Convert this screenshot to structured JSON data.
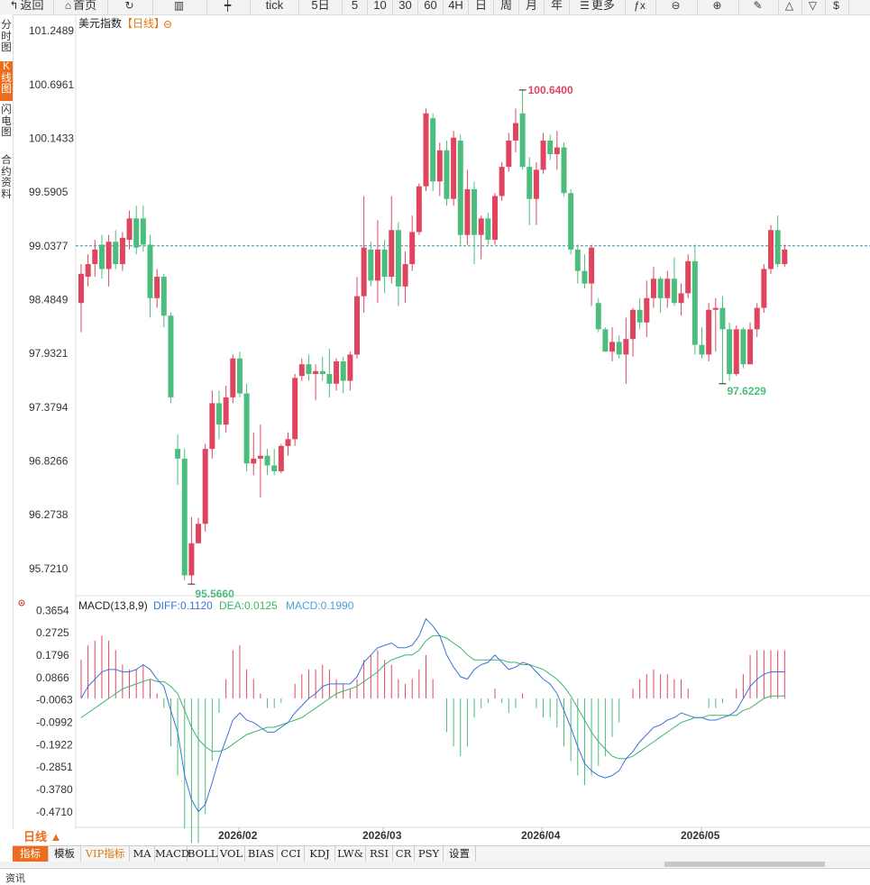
{
  "toolbar": {
    "items": [
      {
        "label": "返回",
        "icon": "back-arrow-icon",
        "glyph": "↰"
      },
      {
        "label": "首页",
        "icon": "home-icon",
        "glyph": "⌂"
      },
      {
        "label": "",
        "icon": "refresh-icon",
        "glyph": "↻"
      },
      {
        "label": "",
        "icon": "bar-chart-icon",
        "glyph": "▥"
      },
      {
        "label": "",
        "icon": "candlestick-icon",
        "glyph": "┿"
      },
      {
        "label": "tick",
        "icon": "",
        "glyph": ""
      },
      {
        "label": "5日",
        "icon": "",
        "glyph": ""
      },
      {
        "label": "5",
        "icon": "",
        "glyph": ""
      },
      {
        "label": "10",
        "icon": "",
        "glyph": ""
      },
      {
        "label": "30",
        "icon": "",
        "glyph": ""
      },
      {
        "label": "60",
        "icon": "",
        "glyph": ""
      },
      {
        "label": "4H",
        "icon": "",
        "glyph": ""
      },
      {
        "label": "日",
        "icon": "",
        "glyph": ""
      },
      {
        "label": "周",
        "icon": "",
        "glyph": ""
      },
      {
        "label": "月",
        "icon": "",
        "glyph": ""
      },
      {
        "label": "年",
        "icon": "",
        "glyph": ""
      },
      {
        "label": "更多",
        "icon": "menu-icon",
        "glyph": "☰"
      },
      {
        "label": "",
        "icon": "function-icon",
        "glyph": "ƒx"
      },
      {
        "label": "",
        "icon": "zoom-out-icon",
        "glyph": "⊖"
      },
      {
        "label": "",
        "icon": "zoom-in-icon",
        "glyph": "⊕"
      },
      {
        "label": "",
        "icon": "draw-pen-icon",
        "glyph": "✎"
      },
      {
        "label": "",
        "icon": "triangle-up-icon",
        "glyph": "△"
      },
      {
        "label": "",
        "icon": "triangle-down-icon",
        "glyph": "▽"
      },
      {
        "label": "",
        "icon": "dollar-icon",
        "glyph": "$"
      }
    ]
  },
  "sidebar": {
    "tabs": [
      {
        "label": "分时图",
        "active": false
      },
      {
        "label": "K线图",
        "active": true
      },
      {
        "label": "闪电图",
        "active": false
      },
      {
        "label": "合约资料",
        "active": false
      }
    ]
  },
  "chart_title": "美元指数",
  "chart_period_tag": "【日线】",
  "macd": {
    "title": "MACD(13,8,9)",
    "diff_label": "DIFF:0.1120",
    "dea_label": "DEA:0.0125",
    "macd_label": "MACD:0.1990"
  },
  "period_label": "日线 ▲",
  "indicator_tabs": [
    "指标",
    "模板",
    "VIP指标",
    "MA",
    "MACD",
    "BOLL",
    "VOL",
    "BIAS",
    "CCI",
    "KDJ",
    "LW&",
    "RSI",
    "CR",
    "PSY",
    "设置"
  ],
  "footer_text": "资讯",
  "colors": {
    "up": "#e0455f",
    "down": "#4dbd7e",
    "diff": "#3b74d6",
    "dea": "#3bb56d",
    "ref": "#3c8fa8",
    "accent": "#ee6d1c"
  },
  "chart_data": {
    "type": "candlestick",
    "y_ticks": [
      "101.2489",
      "100.6961",
      "100.1433",
      "99.5905",
      "99.0377",
      "98.4849",
      "97.9321",
      "97.3794",
      "96.8266",
      "96.2738",
      "95.7210"
    ],
    "ylim": [
      95.45,
      101.38
    ],
    "x_ticks": [
      "2026/02",
      "2026/03",
      "2026/04",
      "2026/05"
    ],
    "reference_line": 99.0377,
    "max_label": "100.6400",
    "min_label_low": "95.5660",
    "min_label_right": "97.6229",
    "candles": [
      [
        98.45,
        98.75,
        98.15,
        98.85
      ],
      [
        98.72,
        98.85,
        98.62,
        98.95
      ],
      [
        98.85,
        99.0,
        98.72,
        99.1
      ],
      [
        99.05,
        98.8,
        98.7,
        99.15
      ],
      [
        98.8,
        99.08,
        98.62,
        99.15
      ],
      [
        99.08,
        98.85,
        98.8,
        99.2
      ],
      [
        98.85,
        99.12,
        98.78,
        99.18
      ],
      [
        99.1,
        99.32,
        99.0,
        99.4
      ],
      [
        99.32,
        99.02,
        98.95,
        99.45
      ],
      [
        99.32,
        99.05,
        98.98,
        99.45
      ],
      [
        99.05,
        98.5,
        98.3,
        99.15
      ],
      [
        98.5,
        98.72,
        98.4,
        98.8
      ],
      [
        98.72,
        98.32,
        98.2,
        98.75
      ],
      [
        98.32,
        97.48,
        97.42,
        98.35
      ],
      [
        96.95,
        96.85,
        96.58,
        97.1
      ],
      [
        96.85,
        95.65,
        95.6,
        96.95
      ],
      [
        95.65,
        95.98,
        95.56,
        96.25
      ],
      [
        95.98,
        96.18,
        95.98,
        96.24
      ],
      [
        96.18,
        96.95,
        96.1,
        97.0
      ],
      [
        96.95,
        97.42,
        96.85,
        97.55
      ],
      [
        97.42,
        97.2,
        97.05,
        97.55
      ],
      [
        97.2,
        97.48,
        97.12,
        97.6
      ],
      [
        97.48,
        97.88,
        97.42,
        97.92
      ],
      [
        97.88,
        97.52,
        97.48,
        97.95
      ],
      [
        97.52,
        96.8,
        96.72,
        97.62
      ],
      [
        96.8,
        96.85,
        96.68,
        97.12
      ],
      [
        96.85,
        96.88,
        96.45,
        97.2
      ],
      [
        96.88,
        96.78,
        96.68,
        96.95
      ],
      [
        96.78,
        96.72,
        96.68,
        96.95
      ],
      [
        96.72,
        96.98,
        96.7,
        97.0
      ],
      [
        96.98,
        97.05,
        96.88,
        97.12
      ],
      [
        97.05,
        97.68,
        96.98,
        97.72
      ],
      [
        97.7,
        97.82,
        97.65,
        97.88
      ],
      [
        97.82,
        97.72,
        97.65,
        97.92
      ],
      [
        97.72,
        97.75,
        97.45,
        97.82
      ],
      [
        97.75,
        97.72,
        97.65,
        97.9
      ],
      [
        97.72,
        97.62,
        97.48,
        97.98
      ],
      [
        97.62,
        97.85,
        97.55,
        97.88
      ],
      [
        97.85,
        97.65,
        97.52,
        97.9
      ],
      [
        97.65,
        97.92,
        97.55,
        97.95
      ],
      [
        97.92,
        98.52,
        97.88,
        98.72
      ],
      [
        98.52,
        99.02,
        98.35,
        99.55
      ],
      [
        99.0,
        98.68,
        98.62,
        99.08
      ],
      [
        98.68,
        99.0,
        98.45,
        99.3
      ],
      [
        99.0,
        98.72,
        98.55,
        99.1
      ],
      [
        98.72,
        99.2,
        98.65,
        99.55
      ],
      [
        99.2,
        98.62,
        98.42,
        99.28
      ],
      [
        98.62,
        98.85,
        98.45,
        98.98
      ],
      [
        98.85,
        99.18,
        98.78,
        99.35
      ],
      [
        99.18,
        99.65,
        99.15,
        99.68
      ],
      [
        99.65,
        100.4,
        99.6,
        100.45
      ],
      [
        100.35,
        99.7,
        99.6,
        100.4
      ],
      [
        99.7,
        100.02,
        99.55,
        100.1
      ],
      [
        100.02,
        99.52,
        99.45,
        100.12
      ],
      [
        99.52,
        100.15,
        99.45,
        100.22
      ],
      [
        100.12,
        99.15,
        99.05,
        100.18
      ],
      [
        99.15,
        99.62,
        99.05,
        99.82
      ],
      [
        99.62,
        99.15,
        98.85,
        99.7
      ],
      [
        99.15,
        99.32,
        98.9,
        99.35
      ],
      [
        99.32,
        99.1,
        99.05,
        99.38
      ],
      [
        99.1,
        99.55,
        99.05,
        99.58
      ],
      [
        99.55,
        99.85,
        99.5,
        99.9
      ],
      [
        99.85,
        100.12,
        99.8,
        100.2
      ],
      [
        100.12,
        100.3,
        100.0,
        100.45
      ],
      [
        100.4,
        99.85,
        99.82,
        100.64
      ],
      [
        99.85,
        99.52,
        99.25,
        99.95
      ],
      [
        99.52,
        99.82,
        99.25,
        99.9
      ],
      [
        99.82,
        100.12,
        99.78,
        100.2
      ],
      [
        100.12,
        99.98,
        99.92,
        100.18
      ],
      [
        99.98,
        100.05,
        99.82,
        100.22
      ],
      [
        100.05,
        99.58,
        99.55,
        100.1
      ],
      [
        99.58,
        99.0,
        98.95,
        99.62
      ],
      [
        99.0,
        98.78,
        98.65,
        99.05
      ],
      [
        98.78,
        98.65,
        98.6,
        98.95
      ],
      [
        98.65,
        99.02,
        98.42,
        99.05
      ],
      [
        98.45,
        98.18,
        98.15,
        98.5
      ],
      [
        98.18,
        97.95,
        97.95,
        98.2
      ],
      [
        97.95,
        98.05,
        97.85,
        98.2
      ],
      [
        98.05,
        97.92,
        97.88,
        98.12
      ],
      [
        97.92,
        98.08,
        97.62,
        98.3
      ],
      [
        98.08,
        98.38,
        97.9,
        98.4
      ],
      [
        98.38,
        98.25,
        98.18,
        98.5
      ],
      [
        98.25,
        98.5,
        98.1,
        98.68
      ],
      [
        98.5,
        98.7,
        98.4,
        98.82
      ],
      [
        98.7,
        98.5,
        98.35,
        98.72
      ],
      [
        98.5,
        98.7,
        98.4,
        98.78
      ],
      [
        98.7,
        98.45,
        98.42,
        98.92
      ],
      [
        98.45,
        98.55,
        98.32,
        98.65
      ],
      [
        98.55,
        98.88,
        98.5,
        98.95
      ],
      [
        98.88,
        98.02,
        97.92,
        99.05
      ],
      [
        98.02,
        97.92,
        97.88,
        98.2
      ],
      [
        97.92,
        98.38,
        97.85,
        98.45
      ],
      [
        98.38,
        98.4,
        97.95,
        98.5
      ],
      [
        98.4,
        98.18,
        97.62,
        98.52
      ],
      [
        98.18,
        97.72,
        97.65,
        98.25
      ],
      [
        97.72,
        98.18,
        97.7,
        98.22
      ],
      [
        98.18,
        97.82,
        97.78,
        98.2
      ],
      [
        97.82,
        98.18,
        97.82,
        98.25
      ],
      [
        98.18,
        98.4,
        98.1,
        98.45
      ],
      [
        98.4,
        98.8,
        98.35,
        98.85
      ],
      [
        98.8,
        99.2,
        98.75,
        99.25
      ],
      [
        99.2,
        98.85,
        98.82,
        99.35
      ],
      [
        98.85,
        99.0,
        98.82,
        99.05
      ]
    ],
    "macd_y_ticks": [
      "0.3654",
      "0.2725",
      "0.1796",
      "0.0866",
      "-0.0063",
      "-0.0992",
      "-0.1922",
      "-0.2851",
      "-0.3780",
      "-0.4710"
    ],
    "macd_ylim": [
      -0.535,
      0.415
    ],
    "diff": [
      0.0,
      0.05,
      0.08,
      0.11,
      0.12,
      0.12,
      0.11,
      0.11,
      0.12,
      0.14,
      0.12,
      0.08,
      0.05,
      -0.05,
      -0.14,
      -0.32,
      -0.42,
      -0.47,
      -0.44,
      -0.35,
      -0.25,
      -0.17,
      -0.09,
      -0.06,
      -0.09,
      -0.1,
      -0.12,
      -0.14,
      -0.14,
      -0.12,
      -0.1,
      -0.06,
      -0.03,
      0.0,
      0.02,
      0.05,
      0.06,
      0.06,
      0.06,
      0.06,
      0.09,
      0.15,
      0.18,
      0.21,
      0.22,
      0.23,
      0.21,
      0.21,
      0.22,
      0.26,
      0.33,
      0.3,
      0.26,
      0.18,
      0.13,
      0.09,
      0.08,
      0.12,
      0.14,
      0.15,
      0.18,
      0.15,
      0.12,
      0.13,
      0.15,
      0.14,
      0.11,
      0.08,
      0.06,
      0.02,
      -0.05,
      -0.12,
      -0.2,
      -0.27,
      -0.3,
      -0.32,
      -0.33,
      -0.32,
      -0.3,
      -0.25,
      -0.22,
      -0.18,
      -0.15,
      -0.12,
      -0.11,
      -0.09,
      -0.08,
      -0.06,
      -0.07,
      -0.08,
      -0.08,
      -0.09,
      -0.09,
      -0.08,
      -0.07,
      -0.05,
      0.0,
      0.05,
      0.08,
      0.1,
      0.11,
      0.11,
      0.11
    ],
    "dea": [
      -0.08,
      -0.06,
      -0.04,
      -0.02,
      0.0,
      0.02,
      0.04,
      0.05,
      0.06,
      0.07,
      0.08,
      0.07,
      0.07,
      0.05,
      0.02,
      -0.05,
      -0.12,
      -0.17,
      -0.2,
      -0.22,
      -0.22,
      -0.21,
      -0.19,
      -0.17,
      -0.15,
      -0.14,
      -0.13,
      -0.12,
      -0.12,
      -0.11,
      -0.1,
      -0.09,
      -0.08,
      -0.06,
      -0.04,
      -0.02,
      0.0,
      0.02,
      0.03,
      0.04,
      0.05,
      0.07,
      0.09,
      0.11,
      0.14,
      0.16,
      0.17,
      0.18,
      0.18,
      0.2,
      0.24,
      0.26,
      0.26,
      0.25,
      0.23,
      0.21,
      0.18,
      0.16,
      0.16,
      0.16,
      0.16,
      0.16,
      0.15,
      0.15,
      0.14,
      0.14,
      0.13,
      0.12,
      0.1,
      0.08,
      0.05,
      0.01,
      -0.04,
      -0.09,
      -0.14,
      -0.18,
      -0.21,
      -0.24,
      -0.25,
      -0.25,
      -0.24,
      -0.22,
      -0.2,
      -0.18,
      -0.16,
      -0.14,
      -0.12,
      -0.1,
      -0.09,
      -0.08,
      -0.08,
      -0.07,
      -0.07,
      -0.07,
      -0.07,
      -0.07,
      -0.05,
      -0.04,
      -0.02,
      0.0,
      0.01,
      0.01,
      0.01
    ]
  }
}
